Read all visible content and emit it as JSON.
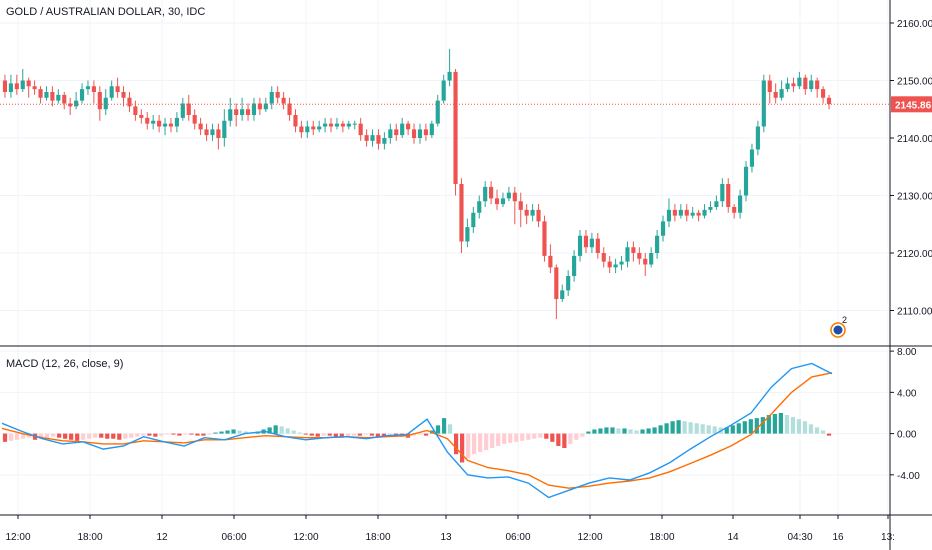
{
  "chart_data": [
    {
      "type": "candlestick",
      "title": "GOLD / AUSTRALIAN DOLLAR, 30, IDC",
      "yaxis": {
        "ticks": [
          "2160.00",
          "2150.00",
          "2140.00",
          "2130.00",
          "2120.00",
          "2110.00"
        ],
        "tick_values": [
          2160,
          2150,
          2140,
          2130,
          2120,
          2110
        ],
        "range": [
          2104,
          2164
        ],
        "side": "right"
      },
      "last_price": {
        "value": 2145.86,
        "label": "2145.86",
        "color": "#ef5350"
      },
      "colors": {
        "up": "#26a69a",
        "down": "#ef5350"
      },
      "grid": true,
      "event_marker": {
        "count": "2",
        "icon": "australia-flag-icon"
      },
      "candles": [
        [
          2150,
          2148,
          2151,
          2147
        ],
        [
          2148,
          2149.5,
          2151,
          2147
        ],
        [
          2149.5,
          2148.5,
          2151,
          2147.5
        ],
        [
          2148.5,
          2150,
          2152,
          2148
        ],
        [
          2150,
          2149,
          2150.5,
          2147
        ],
        [
          2149,
          2148.5,
          2150,
          2147.5
        ],
        [
          2148.5,
          2147,
          2149,
          2146
        ],
        [
          2147,
          2148,
          2149,
          2146.5
        ],
        [
          2148,
          2146.5,
          2149,
          2145.5
        ],
        [
          2146.5,
          2147.5,
          2148.5,
          2146
        ],
        [
          2147.5,
          2146,
          2148,
          2145
        ],
        [
          2146,
          2145.5,
          2147,
          2144
        ],
        [
          2145.5,
          2146.5,
          2148,
          2145
        ],
        [
          2146.5,
          2148.5,
          2149.5,
          2146
        ],
        [
          2148.5,
          2149,
          2150,
          2147.5
        ],
        [
          2149,
          2148,
          2150,
          2146
        ],
        [
          2148,
          2145,
          2149,
          2143
        ],
        [
          2145,
          2147,
          2148.5,
          2144
        ],
        [
          2147,
          2149,
          2150,
          2146.5
        ],
        [
          2149,
          2148,
          2150.5,
          2147
        ],
        [
          2148,
          2147,
          2149,
          2145.5
        ],
        [
          2147,
          2145.5,
          2148,
          2144.5
        ],
        [
          2145.5,
          2144,
          2146.5,
          2143
        ],
        [
          2144,
          2143.5,
          2145,
          2142.5
        ],
        [
          2143.5,
          2142.5,
          2144.5,
          2141.5
        ],
        [
          2142.5,
          2143,
          2144,
          2141.5
        ],
        [
          2143,
          2142,
          2144,
          2141
        ],
        [
          2142,
          2142.5,
          2143.5,
          2140.5
        ],
        [
          2142.5,
          2142,
          2143.5,
          2141
        ],
        [
          2142,
          2143.5,
          2144.5,
          2141
        ],
        [
          2143.5,
          2146,
          2147,
          2143
        ],
        [
          2146,
          2144,
          2147.5,
          2143
        ],
        [
          2144,
          2142.5,
          2145,
          2141.5
        ],
        [
          2142.5,
          2141.5,
          2143.5,
          2140.5
        ],
        [
          2141.5,
          2140.5,
          2142.5,
          2139.5
        ],
        [
          2140.5,
          2141.5,
          2142.5,
          2139.5
        ],
        [
          2141.5,
          2140,
          2142.5,
          2138
        ],
        [
          2140,
          2143,
          2145,
          2138.5
        ],
        [
          2143,
          2145,
          2147,
          2142
        ],
        [
          2145,
          2144,
          2146,
          2142
        ],
        [
          2144,
          2145,
          2147,
          2143
        ],
        [
          2145,
          2144,
          2146,
          2143
        ],
        [
          2144,
          2146,
          2147,
          2143
        ],
        [
          2146,
          2145,
          2147,
          2144
        ],
        [
          2145,
          2146,
          2147,
          2144.5
        ],
        [
          2146,
          2148,
          2149,
          2145
        ],
        [
          2148,
          2147,
          2149,
          2146
        ],
        [
          2147,
          2146,
          2148,
          2145
        ],
        [
          2146,
          2144,
          2147,
          2143
        ],
        [
          2144,
          2142,
          2145,
          2141
        ],
        [
          2142,
          2141,
          2143,
          2140
        ],
        [
          2141,
          2142,
          2143,
          2140
        ],
        [
          2142,
          2141.5,
          2143,
          2140.5
        ],
        [
          2141.5,
          2142,
          2143,
          2141
        ],
        [
          2142,
          2142.5,
          2143.5,
          2141
        ],
        [
          2142.5,
          2142,
          2143.5,
          2141
        ],
        [
          2142,
          2142.5,
          2143.5,
          2141.5
        ],
        [
          2142.5,
          2142,
          2143,
          2141
        ],
        [
          2142,
          2142.5,
          2143,
          2141.5
        ],
        [
          2142.5,
          2142.5,
          2143,
          2141.5
        ],
        [
          2142.5,
          2140.5,
          2143.5,
          2139.5
        ],
        [
          2140.5,
          2139.5,
          2141.5,
          2138.5
        ],
        [
          2139.5,
          2140.5,
          2141.5,
          2138.5
        ],
        [
          2140.5,
          2139,
          2141.5,
          2138
        ],
        [
          2139,
          2140,
          2141,
          2138
        ],
        [
          2140,
          2141.5,
          2142.5,
          2139
        ],
        [
          2141.5,
          2140.5,
          2142.5,
          2139.5
        ],
        [
          2140.5,
          2142.5,
          2143.5,
          2140
        ],
        [
          2142.5,
          2141.5,
          2143,
          2140.5
        ],
        [
          2141.5,
          2140,
          2142.5,
          2139
        ],
        [
          2140,
          2141.5,
          2142.5,
          2139
        ],
        [
          2141.5,
          2140.5,
          2142.5,
          2139.5
        ],
        [
          2140.5,
          2142.5,
          2143,
          2140
        ],
        [
          2142.5,
          2146.5,
          2147.5,
          2142
        ],
        [
          2146.5,
          2150,
          2151,
          2146
        ],
        [
          2150,
          2151.5,
          2155.5,
          2149
        ],
        [
          2151.5,
          2132,
          2152,
          2130
        ],
        [
          2132,
          2122,
          2133,
          2120
        ],
        [
          2122,
          2124.5,
          2126,
          2121
        ],
        [
          2124.5,
          2127,
          2128,
          2123.5
        ],
        [
          2127,
          2129,
          2130,
          2126
        ],
        [
          2129,
          2131.5,
          2132.5,
          2128
        ],
        [
          2131.5,
          2129.5,
          2132.5,
          2128.5
        ],
        [
          2129.5,
          2128.5,
          2131,
          2127.5
        ],
        [
          2128.5,
          2129.5,
          2130.5,
          2128
        ],
        [
          2129.5,
          2130.5,
          2131.5,
          2129
        ],
        [
          2130.5,
          2129,
          2131.5,
          2125
        ],
        [
          2129,
          2127.5,
          2130.5,
          2124.5
        ],
        [
          2127.5,
          2126.5,
          2128.5,
          2125
        ],
        [
          2126.5,
          2127.5,
          2128.5,
          2125.5
        ],
        [
          2127.5,
          2125.5,
          2128.5,
          2124.5
        ],
        [
          2125.5,
          2119.5,
          2126.5,
          2118.5
        ],
        [
          2119.5,
          2117.5,
          2121.5,
          2116.5
        ],
        [
          2117.5,
          2112,
          2118,
          2108.5
        ],
        [
          2112,
          2113.5,
          2114.5,
          2111.5
        ],
        [
          2113.5,
          2116,
          2117,
          2112.5
        ],
        [
          2116,
          2119.5,
          2120.5,
          2115
        ],
        [
          2119.5,
          2123,
          2124,
          2118.5
        ],
        [
          2123,
          2121,
          2124,
          2120
        ],
        [
          2121,
          2122.5,
          2123.5,
          2120
        ],
        [
          2122.5,
          2120,
          2123.5,
          2119
        ],
        [
          2120,
          2118.5,
          2121,
          2117.5
        ],
        [
          2118.5,
          2117.5,
          2119.5,
          2116.5
        ],
        [
          2117.5,
          2118,
          2119,
          2116.5
        ],
        [
          2118,
          2118.5,
          2119.5,
          2117
        ],
        [
          2118.5,
          2121,
          2122,
          2117.5
        ],
        [
          2121,
          2120,
          2122,
          2118.5
        ],
        [
          2120,
          2119,
          2121,
          2118
        ],
        [
          2119,
          2118,
          2120,
          2116
        ],
        [
          2118,
          2120,
          2121,
          2117.5
        ],
        [
          2120,
          2123,
          2124,
          2119
        ],
        [
          2123,
          2125.5,
          2126.5,
          2122
        ],
        [
          2125.5,
          2127.5,
          2129.5,
          2124.5
        ],
        [
          2127.5,
          2126.5,
          2128.5,
          2125.5
        ],
        [
          2126.5,
          2127.5,
          2128.5,
          2126
        ],
        [
          2127.5,
          2126.5,
          2128.5,
          2125.5
        ],
        [
          2126.5,
          2127,
          2128,
          2126
        ],
        [
          2127,
          2126.5,
          2127.5,
          2125.5
        ],
        [
          2126.5,
          2127.5,
          2128.5,
          2126
        ],
        [
          2127.5,
          2128,
          2129,
          2127
        ],
        [
          2128,
          2129,
          2130,
          2127.5
        ],
        [
          2129,
          2132,
          2133,
          2128
        ],
        [
          2132,
          2128,
          2133,
          2127
        ],
        [
          2128,
          2127,
          2128.5,
          2126
        ],
        [
          2127,
          2130,
          2131,
          2126
        ],
        [
          2130,
          2135,
          2136,
          2129
        ],
        [
          2135,
          2138,
          2139,
          2134
        ],
        [
          2138,
          2142,
          2143,
          2137
        ],
        [
          2142,
          2150,
          2151,
          2141
        ],
        [
          2150,
          2148,
          2151,
          2146
        ],
        [
          2148,
          2147,
          2149.5,
          2146
        ],
        [
          2147,
          2148.5,
          2150,
          2146.5
        ],
        [
          2148.5,
          2149.5,
          2150.5,
          2148
        ],
        [
          2149.5,
          2149,
          2150.5,
          2148
        ],
        [
          2149,
          2150.5,
          2151.5,
          2148.5
        ],
        [
          2150.5,
          2148.5,
          2151,
          2147.5
        ],
        [
          2148.5,
          2150,
          2151,
          2148
        ],
        [
          2150,
          2148.5,
          2150.5,
          2147
        ],
        [
          2148.5,
          2147,
          2149,
          2146
        ],
        [
          2147,
          2145.9,
          2147.5,
          2145
        ]
      ],
      "xaxis": {
        "ticks": [
          "12:00",
          "18:00",
          "12",
          "06:00",
          "12:00",
          "18:00",
          "13",
          "06:00",
          "12:00",
          "18:00",
          "14",
          "04:30",
          "16",
          "13:"
        ]
      }
    },
    {
      "type": "macd",
      "title": "MACD (12, 26, close, 9)",
      "yaxis": {
        "ticks": [
          "8.00",
          "4.00",
          "0.00",
          "-4.00"
        ],
        "tick_values": [
          8,
          4,
          0,
          -4
        ],
        "range": [
          -7.8,
          8.4
        ],
        "side": "right"
      },
      "colors": {
        "macd": "#2196f3",
        "signal": "#ff6d00",
        "hist_pos_strong": "#26a69a",
        "hist_pos_weak": "#b2dfdb",
        "hist_neg_strong": "#ef5350",
        "hist_neg_weak": "#ffcdd2"
      },
      "grid": true,
      "macd_line": [
        1.0,
        0.2,
        -0.5,
        -1.0,
        -0.8,
        -1.5,
        -1.2,
        -0.3,
        -0.8,
        -1.2,
        -0.4,
        -0.6,
        0.0,
        0.2,
        -0.3,
        -0.6,
        -0.4,
        -0.3,
        -0.5,
        -0.2,
        -0.1,
        1.4,
        -1.8,
        -4.0,
        -4.3,
        -4.2,
        -4.8,
        -6.2,
        -5.5,
        -4.8,
        -4.3,
        -4.5,
        -3.8,
        -2.8,
        -1.5,
        -0.3,
        0.8,
        2.0,
        4.5,
        6.3,
        6.8,
        5.8
      ],
      "signal_line": [
        0.5,
        0.0,
        -0.4,
        -0.7,
        -0.8,
        -1.0,
        -1.0,
        -0.7,
        -0.8,
        -0.9,
        -0.6,
        -0.6,
        -0.4,
        -0.2,
        -0.3,
        -0.4,
        -0.4,
        -0.3,
        -0.4,
        -0.3,
        -0.2,
        0.3,
        -0.5,
        -2.6,
        -3.3,
        -3.6,
        -4.0,
        -5.0,
        -5.3,
        -5.1,
        -4.8,
        -4.6,
        -4.3,
        -3.7,
        -2.9,
        -2.1,
        -1.2,
        -0.1,
        1.9,
        4.0,
        5.5,
        5.9
      ],
      "histogram": [
        -0.8,
        -0.7,
        -0.6,
        -0.5,
        -0.4,
        -0.6,
        -0.5,
        -0.4,
        -0.3,
        -0.4,
        -0.5,
        -0.6,
        -0.7,
        -0.6,
        -0.5,
        -0.4,
        -0.4,
        -0.5,
        -0.5,
        -0.6,
        -0.5,
        -0.4,
        -0.3,
        -0.2,
        -0.2,
        -0.3,
        -0.2,
        -0.1,
        -0.1,
        -0.2,
        -0.1,
        -0.1,
        -0.2,
        -0.2,
        -0.1,
        0.1,
        0.2,
        0.3,
        0.4,
        0.3,
        0.2,
        0.1,
        0.2,
        0.4,
        0.6,
        0.8,
        0.7,
        0.5,
        0.3,
        0.1,
        -0.1,
        -0.2,
        -0.3,
        -0.2,
        -0.2,
        -0.3,
        -0.4,
        -0.3,
        -0.2,
        -0.2,
        -0.1,
        -0.2,
        -0.3,
        -0.3,
        -0.2,
        -0.2,
        -0.3,
        -0.4,
        -0.2,
        -0.1,
        -0.2,
        0.3,
        0.8,
        1.5,
        0.9,
        -2.0,
        -2.8,
        -2.4,
        -2.0,
        -1.8,
        -1.6,
        -1.4,
        -1.2,
        -1.0,
        -0.9,
        -0.8,
        -0.7,
        -0.6,
        -0.5,
        -0.4,
        -0.5,
        -0.8,
        -1.2,
        -1.4,
        -1.0,
        -0.6,
        -0.3,
        0.2,
        0.4,
        0.5,
        0.6,
        0.6,
        0.5,
        0.5,
        0.4,
        0.3,
        0.4,
        0.5,
        0.6,
        0.8,
        1.0,
        1.2,
        1.3,
        1.2,
        1.1,
        1.0,
        0.9,
        0.8,
        0.7,
        0.6,
        0.6,
        0.8,
        1.0,
        1.2,
        1.4,
        1.5,
        1.6,
        1.8,
        1.9,
        2.0,
        1.8,
        1.6,
        1.4,
        1.2,
        0.9,
        0.6,
        0.3,
        -0.2
      ]
    }
  ]
}
